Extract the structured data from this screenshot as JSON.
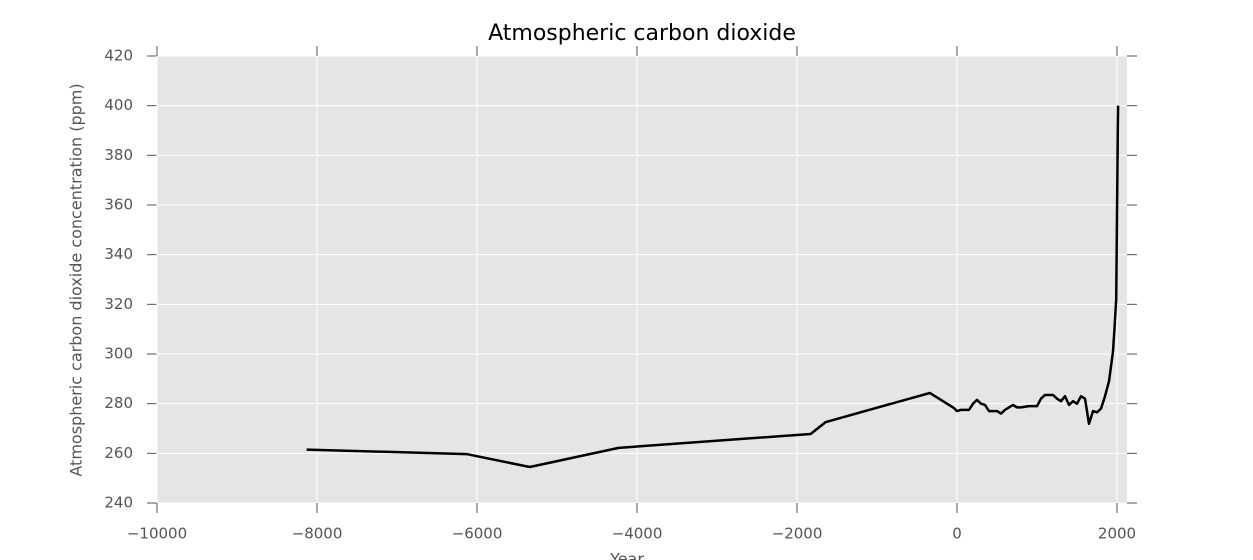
{
  "chart_data": {
    "type": "line",
    "title": "Atmospheric carbon dioxide",
    "x_label": "Year",
    "y_label": "Atmospheric carbon dioxide concentration (ppm)",
    "x": [
      -8130,
      -6130,
      -5340,
      -4230,
      -1830,
      -1640,
      -340,
      -40,
      0,
      50,
      150,
      200,
      250,
      300,
      350,
      400,
      500,
      550,
      600,
      700,
      750,
      800,
      900,
      1000,
      1050,
      1100,
      1150,
      1200,
      1250,
      1300,
      1350,
      1400,
      1450,
      1500,
      1550,
      1600,
      1620,
      1650,
      1700,
      1750,
      1800,
      1850,
      1900,
      1950,
      1970,
      1990,
      2010,
      2014
    ],
    "series": [
      {
        "name": "CO2",
        "color": "#000000",
        "values": [
          261.5,
          259.7,
          254.5,
          262.2,
          267.8,
          272.6,
          284.3,
          278.3,
          277,
          277.5,
          277.5,
          280,
          281.5,
          280,
          279.5,
          277,
          277,
          276,
          277.5,
          279.5,
          278.5,
          278.5,
          279,
          279,
          282,
          283.5,
          283.5,
          283.5,
          282,
          281,
          283,
          279.5,
          281,
          280,
          283,
          282,
          278,
          271.9,
          277,
          276.5,
          278,
          283,
          289,
          301,
          311,
          322,
          390,
          400
        ]
      }
    ],
    "xlim": [
      -10000,
      2125
    ],
    "ylim": [
      240,
      420
    ],
    "xticks": [
      {
        "value": -10000,
        "label": "−10000"
      },
      {
        "value": -8000,
        "label": "−8000"
      },
      {
        "value": -6000,
        "label": "−6000"
      },
      {
        "value": -4000,
        "label": "−4000"
      },
      {
        "value": -2000,
        "label": "−2000"
      },
      0,
      2000
    ],
    "yticks": [
      240,
      260,
      280,
      300,
      320,
      340,
      360,
      380,
      400,
      420
    ],
    "grid": true,
    "background": "#e5e5e5"
  }
}
